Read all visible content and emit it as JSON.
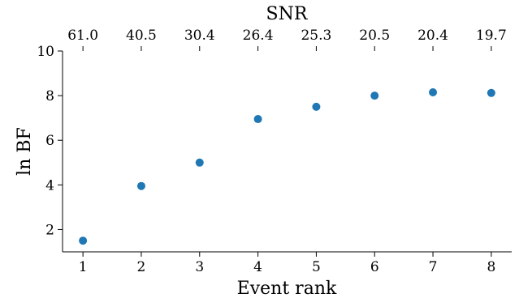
{
  "chart_data": {
    "type": "scatter",
    "title": "",
    "xlabel": "Event rank",
    "ylabel": "ln BF",
    "top_xlabel": "SNR",
    "x": [
      1,
      2,
      3,
      4,
      5,
      6,
      7,
      8
    ],
    "y": [
      1.5,
      3.95,
      5.0,
      6.95,
      7.5,
      8.0,
      8.15,
      8.12
    ],
    "x_ticks": [
      "1",
      "2",
      "3",
      "4",
      "5",
      "6",
      "7",
      "8"
    ],
    "y_ticks": [
      "2",
      "4",
      "6",
      "8",
      "10"
    ],
    "top_ticks": [
      "61.0",
      "40.5",
      "30.4",
      "26.4",
      "25.3",
      "20.5",
      "20.4",
      "19.7"
    ],
    "xlim": [
      0.65,
      8.35
    ],
    "ylim": [
      1.0,
      10.0
    ],
    "grid": false,
    "marker_color": "#1f77b4"
  }
}
